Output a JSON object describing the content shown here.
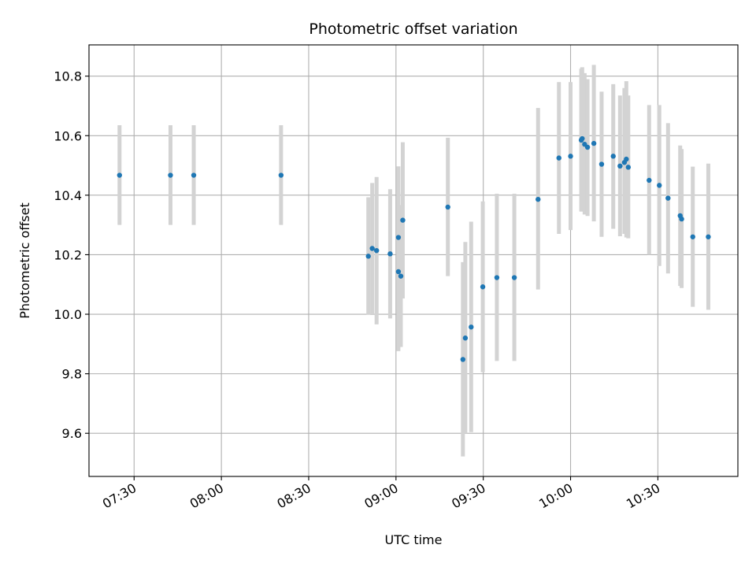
{
  "chart_data": {
    "type": "scatter",
    "title": "Photometric offset variation",
    "xlabel": "UTC time",
    "ylabel": "Photometric offset",
    "x_ticks": [
      "07:30",
      "08:00",
      "08:30",
      "09:00",
      "09:30",
      "10:00",
      "10:30"
    ],
    "y_ticks": [
      "9.6",
      "9.8",
      "10.0",
      "10.2",
      "10.4",
      "10.6",
      "10.8"
    ],
    "x_range": [
      "07:14:30",
      "10:57:30"
    ],
    "ylim": [
      9.455,
      10.905
    ],
    "grid": true,
    "colors": {
      "marker": "#1f77b4",
      "errorbar": "#d3d3d3"
    },
    "points": [
      {
        "x": "07:25:00",
        "y": 10.467,
        "yerr_low": 10.3,
        "yerr_high": 10.635
      },
      {
        "x": "07:42:30",
        "y": 10.467,
        "yerr_low": 10.3,
        "yerr_high": 10.635
      },
      {
        "x": "07:50:30",
        "y": 10.467,
        "yerr_low": 10.3,
        "yerr_high": 10.635
      },
      {
        "x": "08:20:30",
        "y": 10.467,
        "yerr_low": 10.3,
        "yerr_high": 10.635
      },
      {
        "x": "08:50:30",
        "y": 10.195,
        "yerr_low": 9.998,
        "yerr_high": 10.393
      },
      {
        "x": "08:51:50",
        "y": 10.221,
        "yerr_low": 10.0,
        "yerr_high": 10.441
      },
      {
        "x": "08:53:20",
        "y": 10.214,
        "yerr_low": 9.966,
        "yerr_high": 10.461
      },
      {
        "x": "08:58:00",
        "y": 10.203,
        "yerr_low": 9.986,
        "yerr_high": 10.42
      },
      {
        "x": "09:00:50",
        "y": 10.143,
        "yerr_low": 9.876,
        "yerr_high": 10.41
      },
      {
        "x": "09:01:40",
        "y": 10.128,
        "yerr_low": 9.89,
        "yerr_high": 10.367
      },
      {
        "x": "09:00:50",
        "y": 10.258,
        "yerr_low": 10.02,
        "yerr_high": 10.497
      },
      {
        "x": "09:02:20",
        "y": 10.316,
        "yerr_low": 10.053,
        "yerr_high": 10.578
      },
      {
        "x": "09:17:50",
        "y": 10.36,
        "yerr_low": 10.128,
        "yerr_high": 10.593
      },
      {
        "x": "09:23:00",
        "y": 9.848,
        "yerr_low": 9.522,
        "yerr_high": 10.175
      },
      {
        "x": "09:23:50",
        "y": 9.92,
        "yerr_low": 9.6,
        "yerr_high": 10.243
      },
      {
        "x": "09:25:50",
        "y": 9.957,
        "yerr_low": 9.604,
        "yerr_high": 10.311
      },
      {
        "x": "09:29:50",
        "y": 10.092,
        "yerr_low": 9.805,
        "yerr_high": 10.379
      },
      {
        "x": "09:34:40",
        "y": 10.123,
        "yerr_low": 9.843,
        "yerr_high": 10.405
      },
      {
        "x": "09:40:40",
        "y": 10.123,
        "yerr_low": 9.843,
        "yerr_high": 10.405
      },
      {
        "x": "09:48:50",
        "y": 10.386,
        "yerr_low": 10.083,
        "yerr_high": 10.693
      },
      {
        "x": "09:56:00",
        "y": 10.525,
        "yerr_low": 10.27,
        "yerr_high": 10.78
      },
      {
        "x": "10:00:00",
        "y": 10.531,
        "yerr_low": 10.283,
        "yerr_high": 10.78
      },
      {
        "x": "10:03:40",
        "y": 10.585,
        "yerr_low": 10.345,
        "yerr_high": 10.825
      },
      {
        "x": "10:04:00",
        "y": 10.59,
        "yerr_low": 10.345,
        "yerr_high": 10.83
      },
      {
        "x": "10:04:50",
        "y": 10.571,
        "yerr_low": 10.335,
        "yerr_high": 10.81
      },
      {
        "x": "10:05:50",
        "y": 10.561,
        "yerr_low": 10.33,
        "yerr_high": 10.79
      },
      {
        "x": "10:08:00",
        "y": 10.574,
        "yerr_low": 10.312,
        "yerr_high": 10.838
      },
      {
        "x": "10:10:40",
        "y": 10.504,
        "yerr_low": 10.26,
        "yerr_high": 10.748
      },
      {
        "x": "10:14:40",
        "y": 10.531,
        "yerr_low": 10.287,
        "yerr_high": 10.773
      },
      {
        "x": "10:17:00",
        "y": 10.498,
        "yerr_low": 10.262,
        "yerr_high": 10.735
      },
      {
        "x": "10:18:30",
        "y": 10.51,
        "yerr_low": 10.27,
        "yerr_high": 10.76
      },
      {
        "x": "10:19:10",
        "y": 10.521,
        "yerr_low": 10.258,
        "yerr_high": 10.783
      },
      {
        "x": "10:19:50",
        "y": 10.494,
        "yerr_low": 10.255,
        "yerr_high": 10.735
      },
      {
        "x": "10:27:00",
        "y": 10.45,
        "yerr_low": 10.2,
        "yerr_high": 10.703
      },
      {
        "x": "10:30:30",
        "y": 10.433,
        "yerr_low": 10.162,
        "yerr_high": 10.703
      },
      {
        "x": "10:33:30",
        "y": 10.39,
        "yerr_low": 10.137,
        "yerr_high": 10.642
      },
      {
        "x": "10:37:40",
        "y": 10.331,
        "yerr_low": 10.095,
        "yerr_high": 10.567
      },
      {
        "x": "10:38:10",
        "y": 10.32,
        "yerr_low": 10.088,
        "yerr_high": 10.555
      },
      {
        "x": "10:42:00",
        "y": 10.26,
        "yerr_low": 10.025,
        "yerr_high": 10.496
      },
      {
        "x": "10:47:20",
        "y": 10.26,
        "yerr_low": 10.015,
        "yerr_high": 10.506
      }
    ]
  }
}
